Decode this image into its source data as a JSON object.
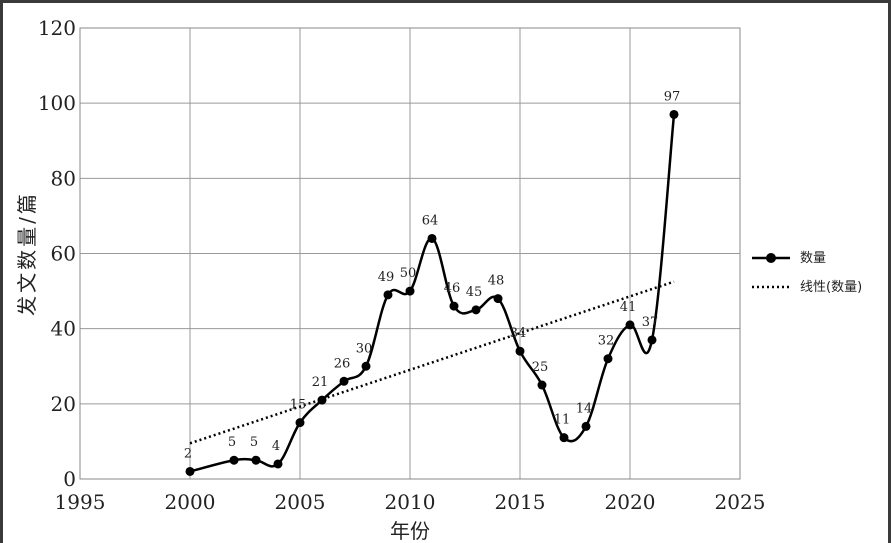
{
  "chart_data": {
    "type": "line",
    "xlabel": "年份",
    "ylabel": "发文数量/篇",
    "xlim": [
      1995,
      2025
    ],
    "ylim": [
      0,
      120
    ],
    "xticks": [
      1995,
      2000,
      2005,
      2010,
      2015,
      2020,
      2025
    ],
    "yticks": [
      0,
      20,
      40,
      60,
      80,
      100,
      120
    ],
    "grid": true,
    "legend_position": "right",
    "series": [
      {
        "name": "数量",
        "style": "solid-with-markers",
        "color": "#000000",
        "x": [
          2000,
          2002,
          2003,
          2004,
          2005,
          2006,
          2007,
          2008,
          2009,
          2010,
          2011,
          2012,
          2013,
          2014,
          2015,
          2016,
          2017,
          2018,
          2019,
          2020,
          2021,
          2022
        ],
        "values": [
          2,
          5,
          5,
          4,
          15,
          21,
          26,
          30,
          49,
          50,
          64,
          46,
          45,
          48,
          34,
          25,
          11,
          14,
          32,
          41,
          37,
          97
        ]
      },
      {
        "name": "线性(数量)",
        "style": "dotted",
        "color": "#000000",
        "x": [
          2000,
          2022
        ],
        "values": [
          9.5,
          52.5
        ]
      }
    ]
  }
}
